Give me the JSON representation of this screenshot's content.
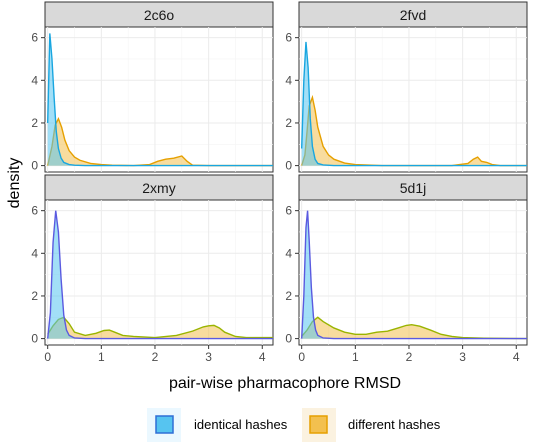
{
  "chart_data": {
    "type": "area",
    "xlabel": "pair-wise pharmacophore RMSD",
    "ylabel": "density",
    "xlim": [
      -0.05,
      4.2
    ],
    "x_ticks": [
      0,
      1,
      2,
      3,
      4
    ],
    "ylim": [
      -0.3,
      6.5
    ],
    "y_ticks": [
      0,
      2,
      4,
      6
    ],
    "grid": true,
    "legend_position": "bottom",
    "legend": [
      {
        "name": "identical hashes",
        "fill": "#56c4f0",
        "stroke": "#2f6fd6"
      },
      {
        "name": "different hashes",
        "fill": "#f3c04f",
        "stroke": "#e6a000"
      }
    ],
    "panels": [
      {
        "title": "2c6o",
        "series": [
          {
            "name": "identical hashes",
            "fill": "#56c4f0",
            "stroke": "#19a6e0",
            "x": [
              0.0,
              0.04,
              0.08,
              0.12,
              0.16,
              0.2,
              0.25,
              0.3,
              0.4,
              0.5,
              0.7,
              1.0,
              2.0,
              3.0,
              4.2
            ],
            "y": [
              2.0,
              6.2,
              5.0,
              3.2,
              1.6,
              0.8,
              0.35,
              0.15,
              0.05,
              0.02,
              0.0,
              0.0,
              0.0,
              0.0,
              0.0
            ]
          },
          {
            "name": "different hashes",
            "fill": "#f3c04f",
            "stroke": "#e6a000",
            "x": [
              0.0,
              0.08,
              0.14,
              0.2,
              0.26,
              0.32,
              0.4,
              0.5,
              0.6,
              0.8,
              1.0,
              1.2,
              1.6,
              1.9,
              2.05,
              2.2,
              2.35,
              2.5,
              2.6,
              2.7,
              3.0,
              4.2
            ],
            "y": [
              0.0,
              0.9,
              1.9,
              2.2,
              1.8,
              1.2,
              0.7,
              0.4,
              0.25,
              0.1,
              0.05,
              0.02,
              0.0,
              0.05,
              0.2,
              0.3,
              0.35,
              0.45,
              0.2,
              0.02,
              0.0,
              0.0
            ]
          }
        ]
      },
      {
        "title": "2fvd",
        "series": [
          {
            "name": "identical hashes",
            "fill": "#56c4f0",
            "stroke": "#19a6e0",
            "x": [
              0.0,
              0.04,
              0.08,
              0.12,
              0.16,
              0.2,
              0.25,
              0.3,
              0.4,
              0.6,
              1.0,
              2.0,
              4.2
            ],
            "y": [
              0.8,
              4.0,
              5.8,
              4.6,
              2.2,
              0.9,
              0.3,
              0.1,
              0.03,
              0.0,
              0.0,
              0.0,
              0.0
            ]
          },
          {
            "name": "different hashes",
            "fill": "#f3c04f",
            "stroke": "#e6a000",
            "x": [
              0.0,
              0.06,
              0.1,
              0.14,
              0.2,
              0.25,
              0.3,
              0.4,
              0.5,
              0.6,
              0.8,
              1.0,
              1.5,
              2.8,
              3.1,
              3.2,
              3.28,
              3.35,
              3.45,
              3.55,
              3.7,
              4.2
            ],
            "y": [
              0.0,
              0.5,
              1.6,
              2.8,
              3.2,
              2.6,
              1.8,
              0.9,
              0.5,
              0.3,
              0.12,
              0.05,
              0.0,
              0.0,
              0.1,
              0.3,
              0.4,
              0.2,
              0.15,
              0.05,
              0.0,
              0.0
            ]
          }
        ]
      },
      {
        "title": "2xmy",
        "series": [
          {
            "name": "identical hashes",
            "fill": "#56c4f0",
            "stroke": "#5a5ae0",
            "x": [
              0.0,
              0.05,
              0.1,
              0.15,
              0.2,
              0.25,
              0.3,
              0.35,
              0.4,
              0.5,
              0.7,
              1.0,
              4.2
            ],
            "y": [
              0.0,
              1.2,
              4.5,
              6.0,
              5.0,
              2.8,
              1.1,
              0.4,
              0.15,
              0.03,
              0.0,
              0.0,
              0.0
            ]
          },
          {
            "name": "different hashes",
            "fill": "#f3c04f",
            "stroke": "#9ab400",
            "x": [
              0.0,
              0.1,
              0.2,
              0.3,
              0.4,
              0.5,
              0.7,
              0.9,
              1.05,
              1.15,
              1.25,
              1.4,
              1.6,
              2.0,
              2.4,
              2.7,
              2.9,
              3.0,
              3.1,
              3.2,
              3.3,
              3.5,
              3.7,
              4.2
            ],
            "y": [
              0.2,
              0.6,
              0.9,
              1.0,
              0.7,
              0.3,
              0.15,
              0.25,
              0.38,
              0.4,
              0.3,
              0.15,
              0.1,
              0.05,
              0.15,
              0.35,
              0.55,
              0.6,
              0.62,
              0.5,
              0.3,
              0.1,
              0.05,
              0.05
            ]
          }
        ]
      },
      {
        "title": "5d1j",
        "series": [
          {
            "name": "identical hashes",
            "fill": "#56c4f0",
            "stroke": "#5a5ae0",
            "x": [
              0.0,
              0.04,
              0.08,
              0.11,
              0.14,
              0.18,
              0.22,
              0.26,
              0.3,
              0.4,
              0.6,
              1.0,
              4.2
            ],
            "y": [
              0.0,
              2.0,
              5.2,
              6.0,
              4.6,
              2.4,
              1.0,
              0.4,
              0.15,
              0.03,
              0.0,
              0.0,
              0.0
            ]
          },
          {
            "name": "different hashes",
            "fill": "#f3c04f",
            "stroke": "#9ab400",
            "x": [
              0.0,
              0.1,
              0.2,
              0.3,
              0.4,
              0.6,
              0.8,
              1.0,
              1.2,
              1.4,
              1.6,
              1.8,
              1.95,
              2.05,
              2.2,
              2.4,
              2.6,
              2.8,
              3.0,
              3.4,
              4.2
            ],
            "y": [
              0.1,
              0.4,
              0.8,
              1.0,
              0.8,
              0.5,
              0.3,
              0.2,
              0.2,
              0.3,
              0.35,
              0.5,
              0.62,
              0.65,
              0.58,
              0.4,
              0.2,
              0.1,
              0.05,
              0.02,
              0.0
            ]
          }
        ]
      }
    ]
  }
}
